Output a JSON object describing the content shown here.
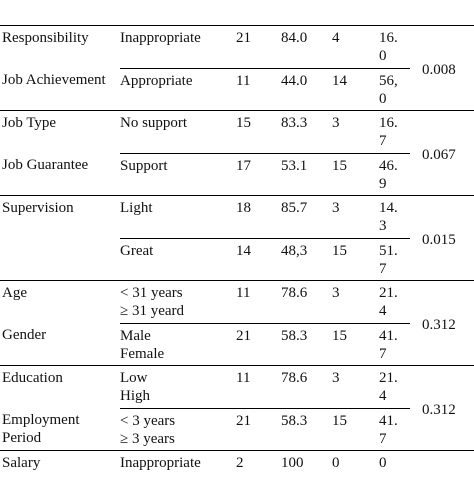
{
  "table": {
    "groups": [
      {
        "labels": [
          "Responsibility",
          "Job Achievement"
        ],
        "p": "0.008",
        "rows": [
          [
            "Inappropriate",
            "21",
            "84.0",
            "4",
            "16.0"
          ],
          [
            "Appropriate",
            "11",
            "44.0",
            "14",
            "56,0"
          ]
        ]
      },
      {
        "labels": [
          "Job Type",
          "Job Guarantee"
        ],
        "p": "0.067",
        "rows": [
          [
            "No support",
            "15",
            "83.3",
            "3",
            "16.7"
          ],
          [
            "Support",
            "17",
            "53.1",
            "15",
            "46.9"
          ]
        ]
      },
      {
        "labels": [
          "Supervision",
          ""
        ],
        "p": "0.015",
        "rows": [
          [
            "Light",
            "18",
            "85.7",
            "3",
            "14.3"
          ],
          [
            "Great",
            "14",
            "48,3",
            "15",
            "51.7"
          ]
        ]
      },
      {
        "labels": [
          "Age",
          "Gender"
        ],
        "p": "0.312",
        "rows": [
          [
            "< 31 years\n≥ 31 yeard",
            "11",
            "78.6",
            "3",
            "21.4"
          ],
          [
            "Male\nFemale",
            "21",
            "58.3",
            "15",
            "41.7"
          ]
        ]
      },
      {
        "labels": [
          "Education",
          "Employment\nPeriod"
        ],
        "p": "0.312",
        "rows": [
          [
            "Low\nHigh",
            "11",
            "78.6",
            "3",
            "21.4"
          ],
          [
            "< 3 years\n≥ 3 years",
            "21",
            "58.3",
            "15",
            "41.7"
          ]
        ]
      },
      {
        "labels": [
          "Salary"
        ],
        "p": null,
        "rows": [
          [
            "Inappropriate",
            "2",
            "100",
            "0",
            "0"
          ]
        ]
      }
    ]
  }
}
